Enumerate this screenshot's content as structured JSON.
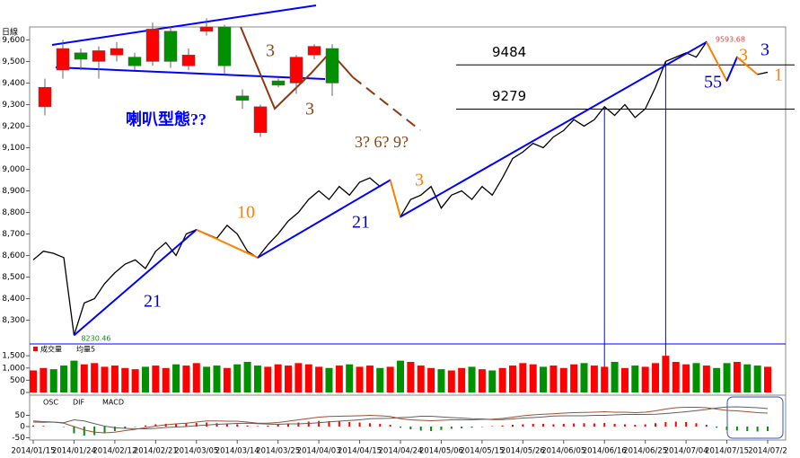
{
  "chart_data": {
    "type": "line",
    "period_label": "日線",
    "categories": [
      "2014/01/15",
      null,
      null,
      null,
      "2014/01/24",
      null,
      null,
      null,
      "2014/02/12",
      null,
      null,
      null,
      "2014/02/21",
      null,
      null,
      null,
      "2014/03/05",
      null,
      null,
      null,
      "2014/03/14",
      null,
      null,
      null,
      "2014/03/25",
      null,
      null,
      null,
      "2014/04/03",
      null,
      null,
      null,
      "2014/04/15",
      null,
      null,
      null,
      "2014/04/24",
      null,
      null,
      null,
      "2014/05/06",
      null,
      null,
      null,
      "2014/05/15",
      null,
      null,
      null,
      "2014/05/26",
      null,
      null,
      null,
      "2014/06/05",
      null,
      null,
      null,
      "2014/06/16",
      null,
      null,
      null,
      "2014/06/25",
      null,
      null,
      null,
      "2014/07/04",
      null,
      null,
      null,
      "2014/07/15",
      null,
      null,
      null,
      "2014/07/2"
    ],
    "values": [
      8580,
      8620,
      8610,
      8590,
      8230,
      8380,
      8400,
      8470,
      8520,
      8560,
      8580,
      8540,
      8620,
      8660,
      8600,
      8700,
      8720,
      8700,
      8680,
      8740,
      8700,
      8620,
      8590,
      8650,
      8700,
      8760,
      8800,
      8860,
      8900,
      8860,
      8920,
      8880,
      8940,
      8960,
      8920,
      8950,
      8780,
      8860,
      8880,
      8920,
      8820,
      8880,
      8900,
      8860,
      8920,
      8880,
      8960,
      9050,
      9080,
      9120,
      9100,
      9150,
      9180,
      9230,
      9200,
      9230,
      9290,
      9250,
      9300,
      9240,
      9280,
      9380,
      9500,
      9520,
      9540,
      9520,
      9590,
      9500,
      9410,
      9520,
      9480,
      9440,
      9450
    ],
    "color": "#000000",
    "ylim": [
      8190,
      9660
    ],
    "yticks": [
      {
        "value": 8300,
        "label": "8,300"
      },
      {
        "value": 8400,
        "label": "8,400"
      },
      {
        "value": 8500,
        "label": "8,500"
      },
      {
        "value": 8600,
        "label": "8,600"
      },
      {
        "value": 8700,
        "label": "8,700"
      },
      {
        "value": 8800,
        "label": "8,800"
      },
      {
        "value": 8900,
        "label": "8,900"
      },
      {
        "value": 9000,
        "label": "9,000"
      },
      {
        "value": 9100,
        "label": "9,100"
      },
      {
        "value": 9200,
        "label": "9,200"
      },
      {
        "value": 9300,
        "label": "9,300"
      },
      {
        "value": 9400,
        "label": "9,400"
      },
      {
        "value": 9500,
        "label": "9,500"
      },
      {
        "value": 9600,
        "label": "9,600"
      }
    ],
    "high_label": 9593.68,
    "low_label": 8230.46,
    "levels": [
      9484,
      9279
    ],
    "inset_candles": [
      {
        "open": 9290,
        "close": 9380,
        "high": 9420,
        "low": 9250
      },
      {
        "open": 9460,
        "close": 9560,
        "high": 9600,
        "low": 9420
      },
      {
        "open": 9540,
        "close": 9510,
        "high": 9560,
        "low": 9460
      },
      {
        "open": 9500,
        "close": 9550,
        "high": 9570,
        "low": 9420
      },
      {
        "open": 9530,
        "close": 9560,
        "high": 9590,
        "low": 9500
      },
      {
        "open": 9520,
        "close": 9480,
        "high": 9540,
        "low": 9460
      },
      {
        "open": 9500,
        "close": 9650,
        "high": 9680,
        "low": 9480
      },
      {
        "open": 9640,
        "close": 9500,
        "high": 9660,
        "low": 9470
      },
      {
        "open": 9480,
        "close": 9530,
        "high": 9560,
        "low": 9460
      },
      {
        "open": 9640,
        "close": 9660,
        "high": 9700,
        "low": 9620
      },
      {
        "open": 9660,
        "close": 9480,
        "high": 9670,
        "low": 9440
      },
      {
        "open": 9340,
        "close": 9320,
        "high": 9370,
        "low": 9280
      },
      {
        "open": 9170,
        "close": 9290,
        "high": 9300,
        "low": 9150
      },
      {
        "open": 9410,
        "close": 9390,
        "high": 9420,
        "low": 9380
      },
      {
        "open": 9400,
        "close": 9520,
        "high": 9530,
        "low": 9350
      },
      {
        "open": 9530,
        "close": 9570,
        "high": 9580,
        "low": 9510
      },
      {
        "open": 9560,
        "close": 9400,
        "high": 9580,
        "low": 9340
      }
    ],
    "up_color": "#ff0000",
    "down_color": "#009000",
    "annotations": [
      {
        "text": "喇叭型態??",
        "color": "#0000ff"
      },
      {
        "text": "3",
        "color": "#8b4513"
      },
      {
        "text": "3",
        "color": "#8b4513"
      },
      {
        "text": "3? 6? 9?",
        "color": "#8b4513"
      },
      {
        "text": "10",
        "color": "#ff7f00"
      },
      {
        "text": "21",
        "color": "#0000cc"
      },
      {
        "text": "21",
        "color": "#0000cc"
      },
      {
        "text": "3",
        "color": "#ff7f00"
      },
      {
        "text": "55",
        "color": "#0000cc"
      },
      {
        "text": "3",
        "color": "#ff7f00"
      },
      {
        "text": "3",
        "color": "#0000cc"
      },
      {
        "text": "1",
        "color": "#ff7f00"
      }
    ],
    "volume": {
      "legend": [
        "成交量",
        "均量5"
      ],
      "values": [
        900,
        1000,
        950,
        1100,
        1300,
        1150,
        1200,
        1050,
        1100,
        1000,
        950,
        1050,
        1100,
        1000,
        1150,
        1100,
        1200,
        1050,
        1100,
        1000,
        1150,
        1250,
        1100,
        1050,
        1150,
        1100,
        1200,
        1150,
        1050,
        1000,
        1100,
        1150,
        1050,
        1100,
        1000,
        1050,
        1300,
        1250,
        1100,
        1000,
        950,
        900,
        1000,
        1050,
        950,
        900,
        1000,
        1100,
        1200,
        1150,
        1050,
        1100,
        1000,
        1150,
        1200,
        1100,
        1050,
        1250,
        1000,
        1100,
        1050,
        1200,
        1500,
        1250,
        1150,
        1200,
        1100,
        1000,
        1200,
        1250,
        1150,
        1100,
        1050
      ],
      "ylim": [
        0,
        1800
      ],
      "yticks": [
        0,
        500,
        {
          "value": 1000,
          "label": "1,000"
        },
        {
          "value": 1500,
          "label": "1,500"
        }
      ]
    },
    "macd": {
      "series": [
        {
          "name": "OSC",
          "values": [
            5,
            3,
            0,
            -2,
            -30,
            -40,
            -38,
            -30,
            -20,
            -10,
            -2,
            5,
            10,
            12,
            14,
            15,
            16,
            18,
            15,
            12,
            10,
            5,
            2,
            4,
            8,
            12,
            18,
            22,
            25,
            24,
            22,
            20,
            18,
            15,
            12,
            8,
            -5,
            -12,
            -18,
            -20,
            -15,
            -10,
            -8,
            -5,
            -2,
            2,
            5,
            8,
            10,
            12,
            12,
            10,
            12,
            14,
            15,
            14,
            16,
            12,
            10,
            8,
            10,
            15,
            20,
            22,
            20,
            15,
            8,
            -5,
            -15,
            -18,
            -20,
            -22,
            -20
          ]
        },
        {
          "name": "DIF",
          "color": "#a05030",
          "values": [
            25,
            22,
            20,
            15,
            0,
            -15,
            -25,
            -28,
            -25,
            -18,
            -12,
            -5,
            2,
            8,
            12,
            15,
            20,
            25,
            25,
            24,
            24,
            20,
            15,
            15,
            18,
            24,
            30,
            36,
            42,
            45,
            46,
            47,
            48,
            50,
            48,
            45,
            35,
            30,
            28,
            26,
            28,
            30,
            30,
            30,
            32,
            33,
            36,
            42,
            48,
            52,
            55,
            57,
            60,
            62,
            63,
            64,
            66,
            64,
            64,
            62,
            64,
            70,
            78,
            84,
            86,
            86,
            84,
            78,
            72,
            70,
            66,
            62,
            60
          ]
        },
        {
          "name": "MACD",
          "color": "#606060",
          "values": [
            20,
            19,
            20,
            17,
            30,
            25,
            13,
            2,
            -5,
            -8,
            -10,
            -10,
            -8,
            -4,
            -2,
            0,
            4,
            7,
            10,
            12,
            14,
            15,
            13,
            11,
            10,
            12,
            12,
            14,
            17,
            21,
            24,
            27,
            30,
            35,
            36,
            37,
            40,
            42,
            46,
            46,
            43,
            40,
            38,
            35,
            34,
            31,
            31,
            34,
            38,
            40,
            43,
            47,
            48,
            48,
            48,
            50,
            50,
            52,
            54,
            54,
            54,
            55,
            58,
            62,
            66,
            71,
            76,
            83,
            87,
            88,
            86,
            84,
            80
          ]
        }
      ],
      "ylim": [
        -60,
        125
      ],
      "yticks": [
        -50,
        0,
        50
      ]
    }
  }
}
